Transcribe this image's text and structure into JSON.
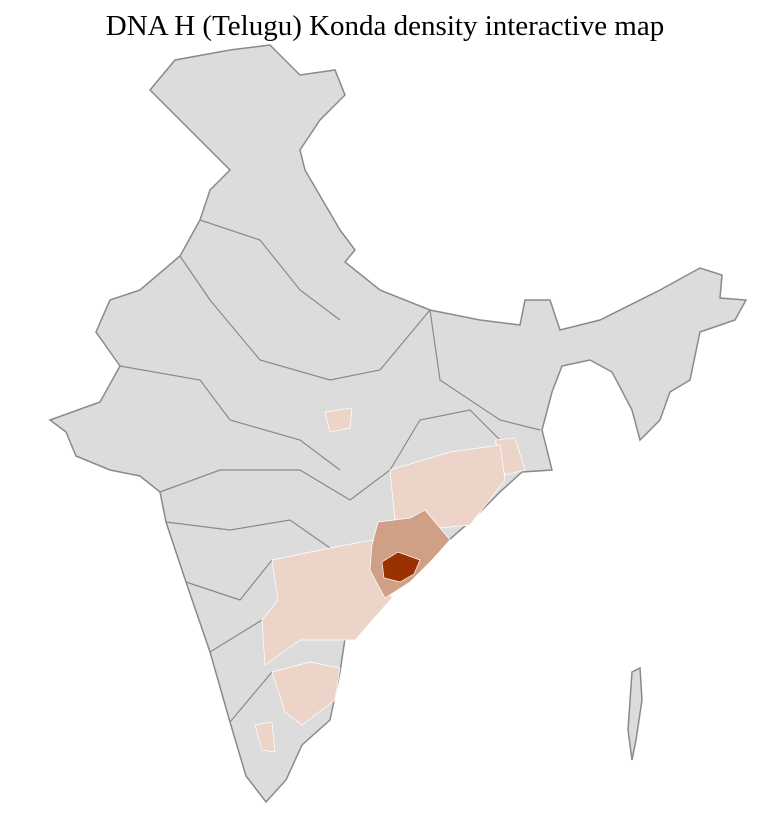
{
  "title": "DNA H (Telugu) Konda density interactive map",
  "colors": {
    "base": "#dcdcdc",
    "border": "#8a8a8a",
    "district_line": "#ffffff",
    "low": "#ecd5c8",
    "medium": "#cf9f86",
    "high": "#9a3100"
  },
  "regions": [
    {
      "name": "Odisha south/central districts",
      "level": "low"
    },
    {
      "name": "Andhra Pradesh / Telangana districts",
      "level": "low"
    },
    {
      "name": "Tamil Nadu districts",
      "level": "low"
    },
    {
      "name": "Kerala district",
      "level": "low"
    },
    {
      "name": "Madhya Pradesh district",
      "level": "low"
    },
    {
      "name": "West Bengal district",
      "level": "low"
    },
    {
      "name": "North coastal Andhra / south Odisha districts",
      "level": "medium"
    },
    {
      "name": "Visakhapatnam area",
      "level": "high"
    }
  ]
}
